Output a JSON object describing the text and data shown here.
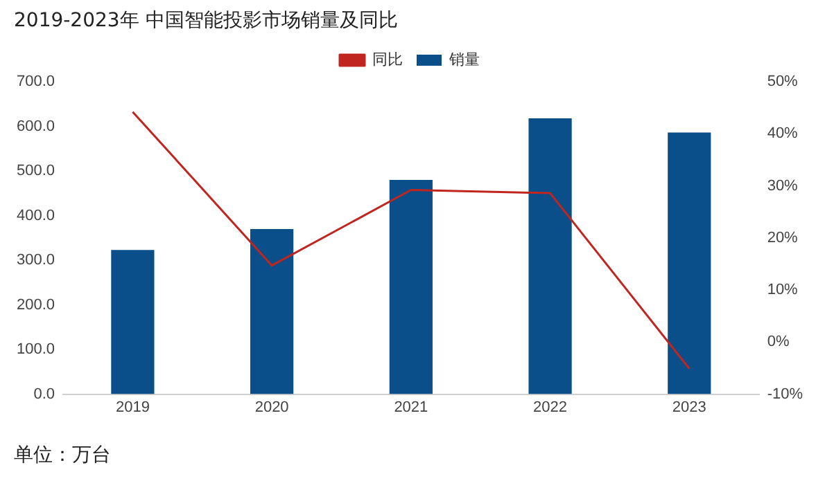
{
  "chart_data": {
    "type": "bar",
    "title": "2019-2023年 中国智能投影市场销量及同比",
    "categories": [
      "2019",
      "2020",
      "2021",
      "2022",
      "2023"
    ],
    "series": [
      {
        "name": "销量",
        "color": "#0a4f8a",
        "values": [
          323,
          370,
          480,
          618,
          586
        ]
      },
      {
        "name": "同比",
        "type": "line",
        "axis": "y2",
        "color": "#c0261f",
        "values": [
          44.2,
          14.7,
          29.2,
          28.6,
          -5.1
        ]
      }
    ],
    "ylim": [
      0,
      700
    ],
    "yticks": [
      {
        "value": 0,
        "label": "0.0"
      },
      {
        "value": 100,
        "label": "100.0"
      },
      {
        "value": 200,
        "label": "200.0"
      },
      {
        "value": 300,
        "label": "300.0"
      },
      {
        "value": 400,
        "label": "400.0"
      },
      {
        "value": 500,
        "label": "500.0"
      },
      {
        "value": 600,
        "label": "600.0"
      },
      {
        "value": 700,
        "label": "700.0"
      }
    ],
    "y2lim": [
      -10,
      50
    ],
    "y2ticks": [
      {
        "value": -10,
        "label": "-10%"
      },
      {
        "value": 0,
        "label": "0%"
      },
      {
        "value": 10,
        "label": "10%"
      },
      {
        "value": 20,
        "label": "20%"
      },
      {
        "value": 30,
        "label": "30%"
      },
      {
        "value": 40,
        "label": "40%"
      },
      {
        "value": 50,
        "label": "50%"
      }
    ],
    "grid": false,
    "legend": "top",
    "marker": "none",
    "annotations": [
      "单位：万台"
    ]
  }
}
